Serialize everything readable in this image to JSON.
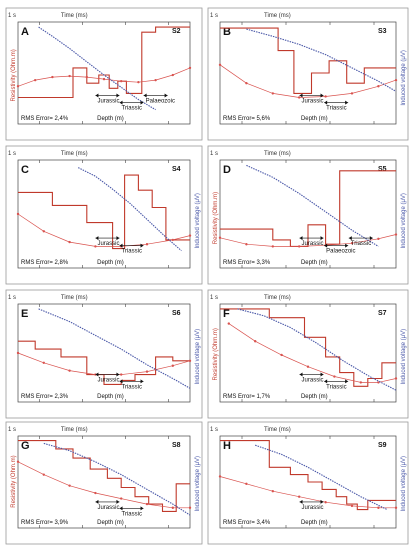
{
  "colors": {
    "model": "#c0392b",
    "data_points": "#d9534f",
    "voltage": "#4a58a8",
    "annotation": "#111111",
    "axis_left": "#c0392b",
    "axis_right": "#4a58a8",
    "frame": "#999999"
  },
  "common": {
    "time_label": "Time (ms)",
    "time_axis_left": "1 s",
    "depth_label": "Depth (m)",
    "resistivity_label": "Resistivity (Ohm.m)",
    "voltage_label": "Induced voltage (μV)"
  },
  "chart_data": [
    {
      "type": "line",
      "panel": "A",
      "station": "S2",
      "rms": "RMS Error= 2,4%",
      "log_axes": true,
      "grid": false,
      "xlabel_top": "Time (ms)",
      "xlabel_bottom": "Depth (m)",
      "ylabel_left": "Resistivity (Ohm.m)",
      "ylabel_right": "",
      "layers": [
        "Jurassic",
        "Triassic",
        "Palaeozoic"
      ],
      "series": [
        {
          "name": "",
          "x": [
            0,
            0.32,
            0.32,
            0.4,
            0.4,
            0.47,
            0.47,
            0.53,
            0.53,
            0.58,
            0.58,
            0.63,
            0.63,
            0.72,
            0.72,
            0.8,
            0.8,
            1
          ],
          "y": [
            0.26,
            0.26,
            0.55,
            0.55,
            0.4,
            0.4,
            0.48,
            0.48,
            0.35,
            0.35,
            0.42,
            0.42,
            0.3,
            0.3,
            0.9,
            0.9,
            0.95,
            0.95
          ]
        },
        {
          "name": "",
          "x": [
            0,
            0.1,
            0.2,
            0.3,
            0.4,
            0.5,
            0.6,
            0.7,
            0.8,
            0.9,
            1
          ],
          "y": [
            0.37,
            0.43,
            0.46,
            0.47,
            0.46,
            0.44,
            0.42,
            0.41,
            0.43,
            0.48,
            0.55
          ]
        },
        {
          "name": "",
          "x": [
            0.12,
            0.2,
            0.3,
            0.4,
            0.5,
            0.6,
            0.7,
            0.8
          ],
          "y": [
            0.95,
            0.86,
            0.74,
            0.61,
            0.48,
            0.36,
            0.24,
            0.14
          ]
        }
      ]
    },
    {
      "type": "line",
      "panel": "B",
      "station": "S3",
      "rms": "RMS Error= 5,6%",
      "log_axes": true,
      "grid": false,
      "xlabel_top": "Time (ms)",
      "xlabel_bottom": "Depth (m)",
      "ylabel_left": "",
      "ylabel_right": "Induced voltage (μV)",
      "layers": [
        "Jurassic",
        "Triassic"
      ],
      "series": [
        {
          "name": "",
          "x": [
            0,
            0.33,
            0.33,
            0.42,
            0.42,
            0.52,
            0.52,
            0.62,
            0.62,
            0.72,
            0.72,
            0.82,
            0.82,
            1
          ],
          "y": [
            0.94,
            0.94,
            0.72,
            0.72,
            0.3,
            0.3,
            0.5,
            0.5,
            0.62,
            0.62,
            0.4,
            0.4,
            0.55,
            0.55
          ]
        },
        {
          "name": "",
          "x": [
            0,
            0.15,
            0.3,
            0.45,
            0.6,
            0.75,
            0.9,
            1
          ],
          "y": [
            0.58,
            0.4,
            0.3,
            0.26,
            0.27,
            0.3,
            0.37,
            0.43
          ]
        },
        {
          "name": "",
          "x": [
            0.15,
            0.3,
            0.45,
            0.6,
            0.75,
            0.9,
            1
          ],
          "y": [
            0.93,
            0.86,
            0.78,
            0.68,
            0.55,
            0.42,
            0.32
          ]
        }
      ]
    },
    {
      "type": "line",
      "panel": "C",
      "station": "S4",
      "rms": "RMS Error= 2,8%",
      "log_axes": true,
      "grid": false,
      "xlabel_top": "Time (ms)",
      "xlabel_bottom": "Depth (m)",
      "ylabel_left": "",
      "ylabel_right": "Induced voltage (μV)",
      "layers": [
        "Jurassic",
        "Triassic"
      ],
      "series": [
        {
          "name": "",
          "x": [
            0,
            0.2,
            0.2,
            0.4,
            0.4,
            0.55,
            0.55,
            0.62,
            0.62,
            0.7,
            0.7,
            0.78,
            0.78,
            0.86,
            0.86,
            1
          ],
          "y": [
            0.7,
            0.7,
            0.58,
            0.58,
            0.42,
            0.42,
            0.18,
            0.18,
            0.86,
            0.86,
            0.72,
            0.72,
            0.56,
            0.56,
            0.26,
            0.26
          ]
        },
        {
          "name": "",
          "x": [
            0,
            0.15,
            0.3,
            0.45,
            0.6,
            0.75,
            0.9,
            1
          ],
          "y": [
            0.5,
            0.34,
            0.24,
            0.2,
            0.2,
            0.22,
            0.26,
            0.3
          ]
        },
        {
          "name": "",
          "x": [
            0.35,
            0.45,
            0.55,
            0.65,
            0.75,
            0.85,
            0.95
          ],
          "y": [
            0.93,
            0.85,
            0.73,
            0.6,
            0.45,
            0.3,
            0.16
          ]
        }
      ]
    },
    {
      "type": "line",
      "panel": "D",
      "station": "S5",
      "rms": "RMS Error= 3,3%",
      "log_axes": true,
      "grid": false,
      "xlabel_top": "Time (ms)",
      "xlabel_bottom": "Depth (m)",
      "ylabel_left": "Resistivity (Ohm.m)",
      "ylabel_right": "Induced voltage (μV)",
      "layers": [
        "Jurassic",
        "Palaeozoic",
        "Triassic"
      ],
      "series": [
        {
          "name": "",
          "x": [
            0,
            0.3,
            0.3,
            0.4,
            0.4,
            0.5,
            0.5,
            0.6,
            0.6,
            0.68,
            0.68,
            1
          ],
          "y": [
            0.36,
            0.36,
            0.26,
            0.26,
            0.2,
            0.2,
            0.4,
            0.4,
            0.22,
            0.22,
            0.9,
            0.9
          ]
        },
        {
          "name": "",
          "x": [
            0,
            0.15,
            0.3,
            0.45,
            0.6,
            0.75,
            0.9,
            1
          ],
          "y": [
            0.28,
            0.22,
            0.2,
            0.2,
            0.21,
            0.23,
            0.27,
            0.31
          ]
        },
        {
          "name": "",
          "x": [
            0.15,
            0.3,
            0.45,
            0.6,
            0.75,
            0.9
          ],
          "y": [
            0.95,
            0.84,
            0.69,
            0.52,
            0.35,
            0.2
          ]
        }
      ]
    },
    {
      "type": "line",
      "panel": "E",
      "station": "S6",
      "rms": "RMS Error= 2,3%",
      "log_axes": true,
      "grid": false,
      "xlabel_top": "Time (ms)",
      "xlabel_bottom": "Depth (m)",
      "ylabel_left": "",
      "ylabel_right": "Induced voltage (μV)",
      "layers": [
        "Jurassic",
        "Triassic"
      ],
      "series": [
        {
          "name": "",
          "x": [
            0,
            0.1,
            0.1,
            0.25,
            0.25,
            0.4,
            0.4,
            0.5,
            0.5,
            0.6,
            0.6,
            0.68,
            0.68,
            0.8,
            0.8,
            0.9,
            0.9,
            1
          ],
          "y": [
            0.62,
            0.62,
            0.54,
            0.54,
            0.46,
            0.46,
            0.28,
            0.28,
            0.18,
            0.18,
            0.22,
            0.22,
            0.28,
            0.28,
            0.46,
            0.46,
            0.42,
            0.42
          ]
        },
        {
          "name": "",
          "x": [
            0,
            0.15,
            0.3,
            0.45,
            0.6,
            0.75,
            0.9,
            1
          ],
          "y": [
            0.5,
            0.4,
            0.32,
            0.28,
            0.28,
            0.31,
            0.37,
            0.42
          ]
        },
        {
          "name": "",
          "x": [
            0.12,
            0.3,
            0.45,
            0.6,
            0.75,
            0.9,
            1
          ],
          "y": [
            0.95,
            0.82,
            0.68,
            0.54,
            0.38,
            0.24,
            0.14
          ]
        }
      ]
    },
    {
      "type": "line",
      "panel": "F",
      "station": "S7",
      "rms": "RMS Error= 1,7%",
      "log_axes": true,
      "grid": false,
      "xlabel_top": "Time (ms)",
      "xlabel_bottom": "Depth (m)",
      "ylabel_left": "Resistivity (Ohm.m)",
      "ylabel_right": "Induced voltage (μV)",
      "layers": [
        "Jurassic",
        "Triassic"
      ],
      "series": [
        {
          "name": "",
          "x": [
            0,
            0.28,
            0.28,
            0.48,
            0.48,
            0.6,
            0.6,
            0.68,
            0.68,
            0.76,
            0.76,
            0.84,
            0.84,
            0.92,
            0.92,
            1
          ],
          "y": [
            0.95,
            0.95,
            0.86,
            0.86,
            0.66,
            0.66,
            0.46,
            0.46,
            0.3,
            0.3,
            0.16,
            0.16,
            0.24,
            0.24,
            0.4,
            0.4
          ]
        },
        {
          "name": "",
          "x": [
            0.05,
            0.2,
            0.35,
            0.5,
            0.65,
            0.8,
            0.9,
            1
          ],
          "y": [
            0.8,
            0.62,
            0.48,
            0.36,
            0.26,
            0.2,
            0.2,
            0.24
          ]
        },
        {
          "name": "",
          "x": [
            0.1,
            0.25,
            0.4,
            0.55,
            0.7,
            0.85,
            1
          ],
          "y": [
            0.95,
            0.88,
            0.76,
            0.6,
            0.42,
            0.26,
            0.12
          ]
        }
      ]
    },
    {
      "type": "line",
      "panel": "G",
      "station": "S8",
      "rms": "RMS Error= 3,9%",
      "log_axes": true,
      "grid": false,
      "xlabel_top": "Time (ms)",
      "xlabel_bottom": "Depth (m)",
      "ylabel_left": "Resistivity (Ohm.m)",
      "ylabel_right": "Induced voltage (μV)",
      "layers": [
        "Jurassic",
        "Triassic"
      ],
      "series": [
        {
          "name": "",
          "x": [
            0,
            0.22,
            0.22,
            0.32,
            0.32,
            0.42,
            0.42,
            0.52,
            0.52,
            0.6,
            0.6,
            0.68,
            0.68,
            0.76,
            0.76,
            0.84,
            0.84,
            0.92,
            0.92,
            1
          ],
          "y": [
            0.95,
            0.95,
            0.86,
            0.86,
            0.76,
            0.76,
            0.64,
            0.64,
            0.54,
            0.54,
            0.44,
            0.44,
            0.34,
            0.34,
            0.26,
            0.26,
            0.18,
            0.18,
            0.48,
            0.48
          ]
        },
        {
          "name": "",
          "x": [
            0,
            0.15,
            0.3,
            0.45,
            0.6,
            0.75,
            0.9,
            1
          ],
          "y": [
            0.72,
            0.58,
            0.46,
            0.38,
            0.32,
            0.26,
            0.22,
            0.22
          ]
        },
        {
          "name": "",
          "x": [
            0.15,
            0.3,
            0.45,
            0.6,
            0.75,
            0.9,
            1
          ],
          "y": [
            0.92,
            0.84,
            0.72,
            0.58,
            0.42,
            0.26,
            0.14
          ]
        }
      ]
    },
    {
      "type": "line",
      "panel": "H",
      "station": "S9",
      "rms": "RMS Error= 3,4%",
      "log_axes": true,
      "grid": false,
      "xlabel_top": "Time (ms)",
      "xlabel_bottom": "Depth (m)",
      "ylabel_left": "",
      "ylabel_right": "Induced voltage (μV)",
      "layers": [
        "Jurassic"
      ],
      "series": [
        {
          "name": "",
          "x": [
            0,
            0.28,
            0.28,
            0.4,
            0.4,
            0.5,
            0.5,
            0.58,
            0.58,
            0.66,
            0.66,
            0.72,
            0.72,
            0.78,
            0.78,
            0.84,
            0.84,
            1
          ],
          "y": [
            0.95,
            0.95,
            0.66,
            0.66,
            0.58,
            0.58,
            0.5,
            0.5,
            0.42,
            0.42,
            0.34,
            0.34,
            0.26,
            0.26,
            0.2,
            0.2,
            0.3,
            0.3
          ]
        },
        {
          "name": "",
          "x": [
            0,
            0.15,
            0.3,
            0.45,
            0.6,
            0.75,
            0.9,
            1
          ],
          "y": [
            0.56,
            0.48,
            0.4,
            0.34,
            0.28,
            0.24,
            0.22,
            0.22
          ]
        },
        {
          "name": "",
          "x": [
            0.2,
            0.35,
            0.5,
            0.65,
            0.8,
            0.95
          ],
          "y": [
            0.9,
            0.8,
            0.66,
            0.5,
            0.34,
            0.2
          ]
        }
      ]
    }
  ]
}
